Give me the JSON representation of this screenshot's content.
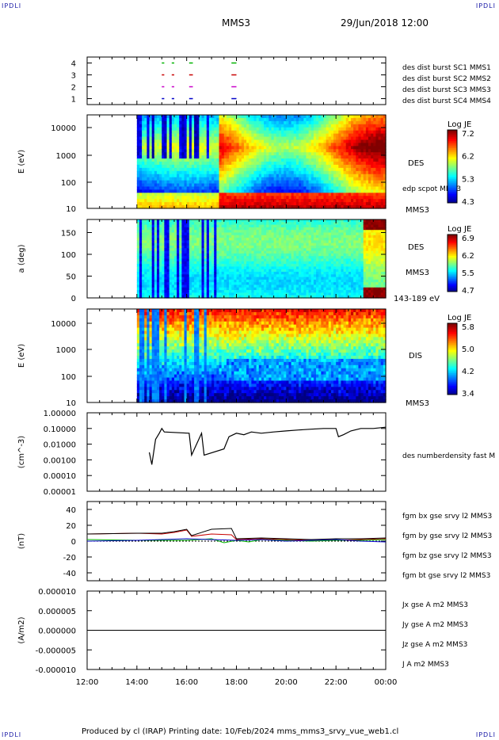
{
  "corner_marks": {
    "tl": "IPDLI",
    "tr": "IPDLI",
    "bl": "IPDLI",
    "br": "IPDLI"
  },
  "header": {
    "spacecraft": "MMS3",
    "date": "29/Jun/2018 12:00"
  },
  "footer": "Produced by cl (IRAP)   Printing date: 10/Feb/2024   mms_mms3_srvy_vue_web1.cl",
  "time_axis": {
    "ticks": [
      "12:00",
      "14:00",
      "16:00",
      "18:00",
      "20:00",
      "22:00",
      "00:00"
    ],
    "range_hours": [
      12,
      24
    ],
    "data_start_hour": 14.0
  },
  "colors": {
    "blue": "#0000c8",
    "magenta": "#c800c8",
    "red": "#c80000",
    "green": "#00b400",
    "black": "#000000"
  },
  "chart_data": [
    {
      "type": "scatter",
      "id": "burst",
      "yticks": [
        "4",
        "3",
        "2",
        "1"
      ],
      "ylim": [
        0.5,
        4.5
      ],
      "legend": [
        {
          "name": "des dist burst SC1 MMS1",
          "color": "#0000c8"
        },
        {
          "name": "des dist burst SC2 MMS2",
          "color": "#c800c8"
        },
        {
          "name": "des dist burst SC3 MMS3",
          "color": "#c80000"
        },
        {
          "name": "des dist burst SC4 MMS4",
          "color": "#00b400"
        }
      ],
      "intervals_hours": [
        [
          15.0,
          15.1
        ],
        [
          15.4,
          15.5
        ],
        [
          16.1,
          16.25
        ],
        [
          17.8,
          18.0
        ]
      ]
    },
    {
      "type": "heatmap",
      "id": "des-energy",
      "ylabel": "E (eV)",
      "yticks": [
        "10000",
        "1000",
        "100",
        "10"
      ],
      "side_label": "DES",
      "side_label2": "MMS3",
      "side_note": "edp scpot MMS3",
      "colorbar": {
        "title": "Log JE",
        "ticks": [
          "7.2",
          "6.2",
          "5.3",
          "4.3"
        ]
      }
    },
    {
      "type": "heatmap",
      "id": "des-pitch",
      "ylabel": "a (deg)",
      "yticks": [
        "150",
        "100",
        "50",
        "0"
      ],
      "ylim": [
        0,
        180
      ],
      "side_label": "DES",
      "side_label2": "MMS3",
      "side_note": "143-189 eV",
      "colorbar": {
        "title": "Log JE",
        "ticks": [
          "6.9",
          "6.2",
          "5.5",
          "4.7"
        ]
      }
    },
    {
      "type": "heatmap",
      "id": "dis-energy",
      "ylabel": "E (eV)",
      "yticks": [
        "10000",
        "1000",
        "100",
        "10"
      ],
      "side_label": "DIS",
      "side_label2": "MMS3",
      "colorbar": {
        "title": "Log JE",
        "ticks": [
          "5.8",
          "5.0",
          "4.2",
          "3.4"
        ]
      }
    },
    {
      "type": "line",
      "id": "density",
      "ylabel": "(cm^-3)",
      "yticks": [
        "1.00000",
        "0.10000",
        "0.01000",
        "0.00100",
        "0.00010",
        "0.00001"
      ],
      "legend": [
        {
          "name": "des numberdensity fast M",
          "color": "#000000"
        }
      ],
      "x_hours": [
        14.5,
        14.6,
        14.75,
        14.9,
        15.0,
        15.1,
        16.1,
        16.2,
        16.6,
        16.7,
        17.5,
        17.7,
        18.0,
        18.3,
        18.6,
        19.0,
        19.5,
        20.0,
        20.5,
        21.0,
        21.5,
        22.0,
        22.1,
        22.3,
        22.6,
        23.0,
        23.5,
        24.0
      ],
      "y": [
        0.003,
        0.0005,
        0.02,
        0.05,
        0.1,
        0.06,
        0.05,
        0.002,
        0.05,
        0.002,
        0.005,
        0.03,
        0.05,
        0.04,
        0.06,
        0.05,
        0.06,
        0.07,
        0.08,
        0.09,
        0.1,
        0.1,
        0.03,
        0.04,
        0.07,
        0.1,
        0.1,
        0.12
      ]
    },
    {
      "type": "line",
      "id": "magnetic-field",
      "ylabel": "(nT)",
      "yticks": [
        "40",
        "20",
        "0",
        "-20",
        "-40"
      ],
      "ylim": [
        -50,
        50
      ],
      "series": [
        {
          "name": "fgm bx gse srvy l2 MMS3",
          "color": "#c80000",
          "x_hours": [
            12,
            14,
            15,
            15.5,
            16,
            16.2,
            17,
            17.8,
            18,
            19,
            20,
            21,
            22,
            23,
            24
          ],
          "y": [
            9,
            10,
            9,
            11,
            14,
            6,
            9,
            8,
            2,
            3,
            2,
            1,
            1,
            2,
            3
          ]
        },
        {
          "name": "fgm by gse srvy l2 MMS3",
          "color": "#00b400",
          "x_hours": [
            12,
            14,
            15,
            16,
            17,
            17.5,
            18,
            18.5,
            19,
            20,
            21,
            22,
            23,
            24
          ],
          "y": [
            2,
            1,
            1,
            1,
            3,
            -2,
            1,
            -1,
            2,
            1,
            0,
            1,
            1,
            2
          ]
        },
        {
          "name": "fgm bz gse srvy l2 MMS3",
          "color": "#0000c8",
          "x_hours": [
            12,
            14,
            15,
            16,
            17,
            18,
            19,
            20,
            21,
            22,
            23,
            24
          ],
          "y": [
            0,
            1,
            2,
            3,
            2,
            1,
            2,
            0,
            1,
            2,
            0,
            -1
          ]
        },
        {
          "name": "fgm bt gse srvy l2 MMS3",
          "color": "#000000",
          "x_hours": [
            12,
            14,
            15,
            15.5,
            16,
            16.2,
            17,
            17.8,
            18,
            19,
            20,
            21,
            22,
            23,
            24
          ],
          "y": [
            9,
            10,
            10,
            12,
            15,
            7,
            15,
            16,
            3,
            4,
            3,
            2,
            3,
            3,
            4
          ]
        }
      ]
    },
    {
      "type": "line",
      "id": "current-density",
      "ylabel": "(A/m2)",
      "yticks": [
        "0.000010",
        "0.000005",
        "0.000000",
        "-0.000005",
        "-0.000010"
      ],
      "ylim": [
        -1e-05,
        1e-05
      ],
      "series": [
        {
          "name": "Jx gse A m2 MMS3",
          "color": "#c80000",
          "x_hours": [
            12,
            24
          ],
          "y": [
            0,
            0
          ]
        },
        {
          "name": "Jy gse A m2 MMS3",
          "color": "#00b400",
          "x_hours": [
            12,
            24
          ],
          "y": [
            0,
            0
          ]
        },
        {
          "name": "Jz gse A m2 MMS3",
          "color": "#0000c8",
          "x_hours": [
            12,
            24
          ],
          "y": [
            0,
            0
          ]
        },
        {
          "name": "J A m2 MMS3",
          "color": "#000000",
          "x_hours": [
            12,
            24
          ],
          "y": [
            0,
            0
          ]
        }
      ]
    }
  ]
}
